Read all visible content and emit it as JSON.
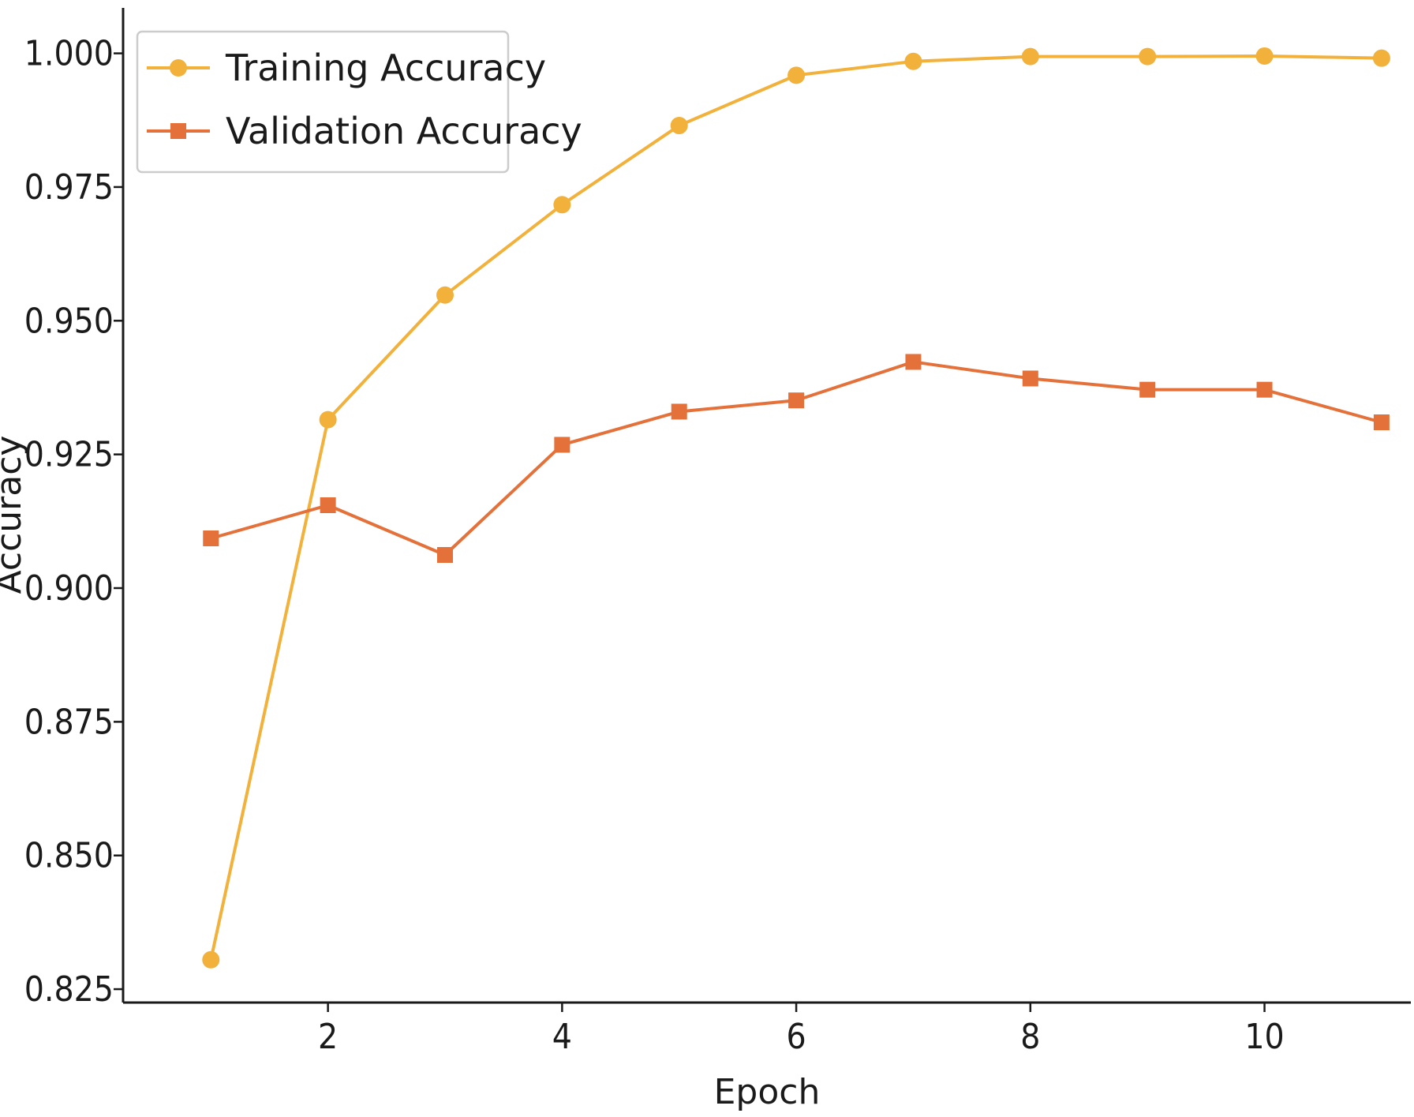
{
  "chart_data": {
    "type": "line",
    "title": "",
    "xlabel": "Epoch",
    "ylabel": "Accuracy",
    "x": [
      1,
      2,
      3,
      4,
      5,
      6,
      7,
      8,
      9,
      10,
      11
    ],
    "xlim": [
      0.25,
      11.25
    ],
    "ylim": [
      0.8225,
      1.0085
    ],
    "x_ticks": [
      2,
      4,
      6,
      8,
      10
    ],
    "x_tick_labels": [
      "2",
      "4",
      "6",
      "8",
      "10"
    ],
    "y_ticks": [
      0.825,
      0.85,
      0.875,
      0.9,
      0.925,
      0.95,
      0.975,
      1.0
    ],
    "y_tick_labels": [
      "0.825",
      "0.850",
      "0.875",
      "0.900",
      "0.925",
      "0.950",
      "0.975",
      "1.000"
    ],
    "grid": false,
    "legend_position": "top-left",
    "series": [
      {
        "name": "Training Accuracy",
        "marker": "circle",
        "color": "#F2B13A",
        "values": [
          0.8305,
          0.9315,
          0.9548,
          0.9717,
          0.9865,
          0.9959,
          0.9985,
          0.9994,
          0.9994,
          0.9995,
          0.9991
        ]
      },
      {
        "name": "Validation Accuracy",
        "marker": "square",
        "color": "#E5713A",
        "values": [
          0.9093,
          0.9155,
          0.9062,
          0.9268,
          0.933,
          0.9351,
          0.9423,
          0.9392,
          0.9371,
          0.9371,
          0.931
        ]
      }
    ]
  }
}
